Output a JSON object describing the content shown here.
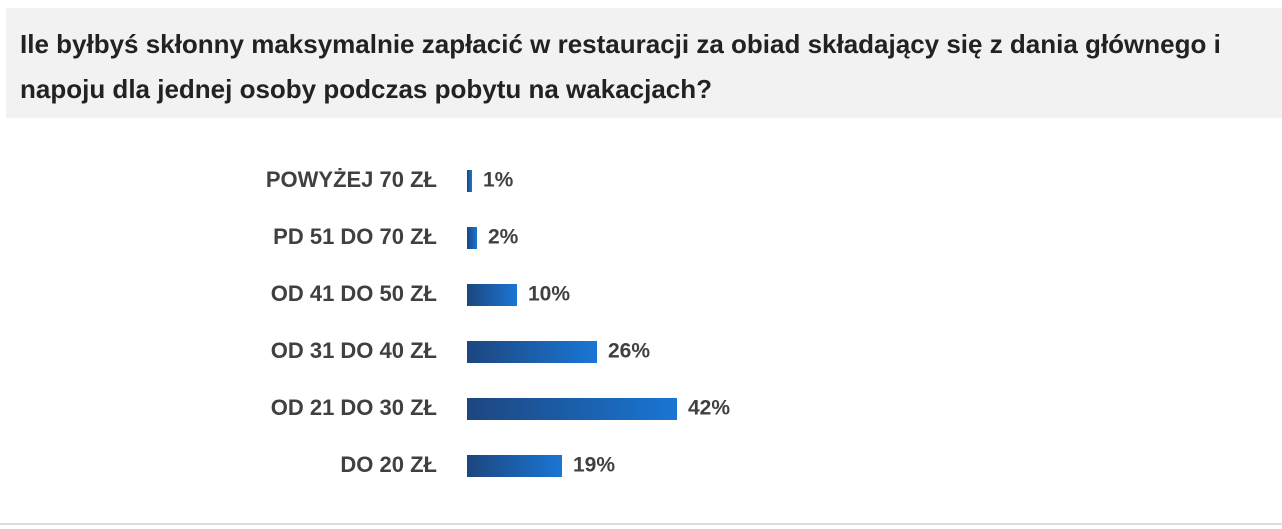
{
  "chart_data": {
    "type": "bar",
    "orientation": "horizontal",
    "title": "Ile byłbyś skłonny maksymalnie zapłacić w restauracji za obiad składający się z dania głównego i napoju dla jednej osoby podczas pobytu na wakacjach?",
    "categories": [
      "POWYŻEJ 70 ZŁ",
      "PD 51 DO 70 ZŁ",
      "OD 41 DO 50 ZŁ",
      "OD 31 DO 40 ZŁ",
      "OD 21 DO 30 ZŁ",
      "DO 20 ZŁ"
    ],
    "values": [
      1,
      2,
      10,
      26,
      42,
      19
    ],
    "value_labels": [
      "1%",
      "2%",
      "10%",
      "26%",
      "42%",
      "19%"
    ],
    "color": "#1a6fc9"
  }
}
